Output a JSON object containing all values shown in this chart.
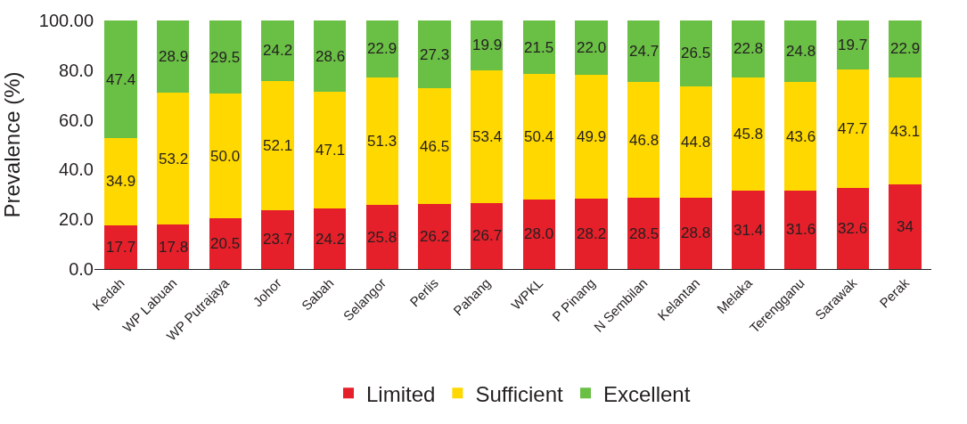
{
  "chart_data": {
    "type": "bar",
    "stacked": true,
    "ylabel": "Prevalence (%)",
    "categories": [
      "Kedah",
      "WP Labuan",
      "WP Putrajaya",
      "Johor",
      "Sabah",
      "Selangor",
      "Perlis",
      "Pahang",
      "WPKL",
      "P Pinang",
      "N Sembilan",
      "Kelantan",
      "Melaka",
      "Terengganu",
      "Sarawak",
      "Perak"
    ],
    "series": [
      {
        "name": "Limited",
        "color": "#e5202a",
        "values": [
          17.7,
          17.8,
          20.5,
          23.7,
          24.2,
          25.8,
          26.2,
          26.7,
          28.0,
          28.2,
          28.5,
          28.8,
          31.4,
          31.6,
          32.6,
          34.0
        ],
        "value_labels": [
          "17.7",
          "17.8",
          "20.5",
          "23.7",
          "24.2",
          "25.8",
          "26.2",
          "26.7",
          "28.0",
          "28.2",
          "28.5",
          "28.8",
          "31.4",
          "31.6",
          "32.6",
          "34"
        ]
      },
      {
        "name": "Sufficient",
        "color": "#ffd800",
        "values": [
          34.9,
          53.2,
          50.0,
          52.1,
          47.1,
          51.3,
          46.5,
          53.4,
          50.4,
          49.9,
          46.8,
          44.8,
          45.8,
          43.6,
          47.7,
          43.1
        ],
        "value_labels": [
          "34.9",
          "53.2",
          "50.0",
          "52.1",
          "47.1",
          "51.3",
          "46.5",
          "53.4",
          "50.4",
          "49.9",
          "46.8",
          "44.8",
          "45.8",
          "43.6",
          "47.7",
          "43.1"
        ]
      },
      {
        "name": "Excellent",
        "color": "#6abf45",
        "values": [
          47.4,
          28.9,
          29.5,
          24.2,
          28.6,
          22.9,
          27.3,
          19.9,
          21.5,
          22.0,
          24.7,
          26.5,
          22.8,
          24.8,
          19.7,
          22.9
        ],
        "value_labels": [
          "47.4",
          "28.9",
          "29.5",
          "24.2",
          "28.6",
          "22.9",
          "27.3",
          "19.9",
          "21.5",
          "22.0",
          "24.7",
          "26.5",
          "22.8",
          "24.8",
          "19.7",
          "22.9"
        ]
      }
    ],
    "ylim": [
      0,
      100
    ],
    "yticks": [
      {
        "value": 0,
        "label": "0.0"
      },
      {
        "value": 20,
        "label": "20.0"
      },
      {
        "value": 40,
        "label": "40.0"
      },
      {
        "value": 60,
        "label": "60.0"
      },
      {
        "value": 80,
        "label": "80.0"
      },
      {
        "value": 100,
        "label": "100.00"
      }
    ],
    "legend": "bottom"
  }
}
